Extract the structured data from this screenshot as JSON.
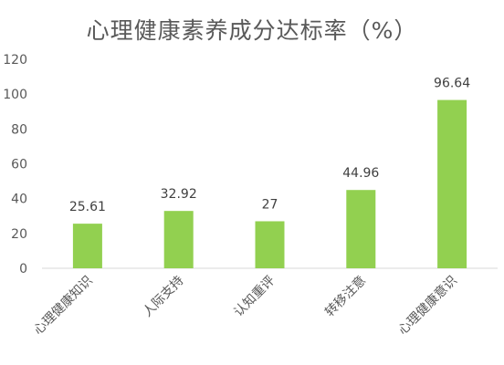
{
  "chart_data": {
    "type": "bar",
    "title": "心理健康素养成分达标率（%）",
    "categories": [
      "心理健康知识",
      "人际支持",
      "认知重评",
      "转移注意",
      "心理健康意识"
    ],
    "values": [
      25.61,
      32.92,
      27,
      44.96,
      96.64
    ],
    "value_labels": [
      "25.61",
      "32.92",
      "27",
      "44.96",
      "96.64"
    ],
    "yticks": [
      "0",
      "20",
      "40",
      "60",
      "80",
      "100",
      "120"
    ],
    "ylim": [
      0,
      120
    ],
    "xlabel": "",
    "ylabel": "",
    "grid": false,
    "legend": "none",
    "bar_color": "#92d050",
    "axis_color": "#d9d9d9"
  }
}
